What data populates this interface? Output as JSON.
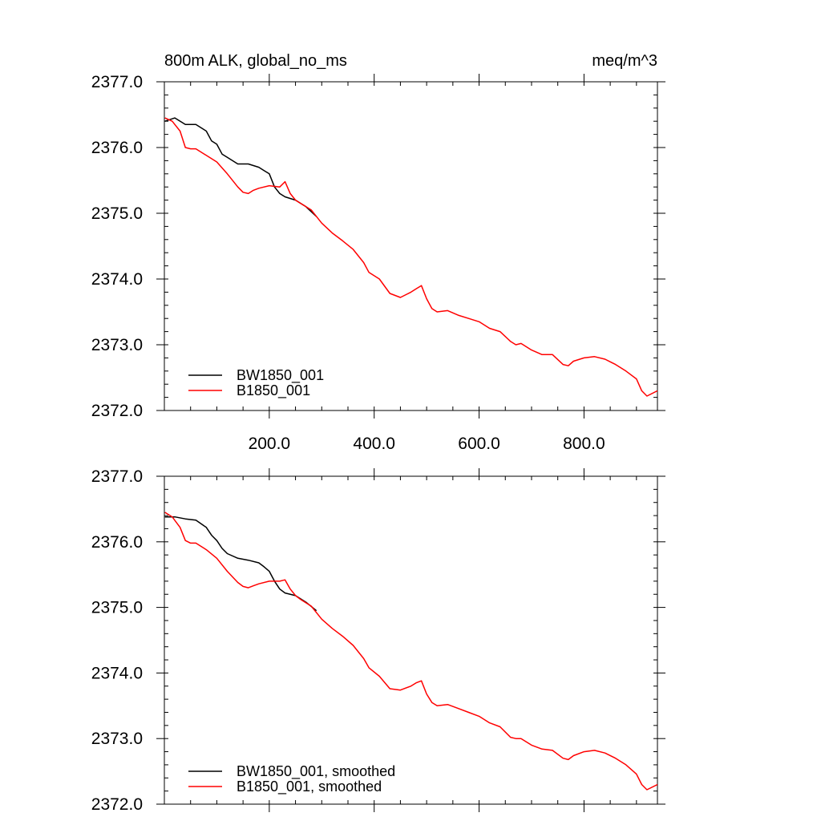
{
  "chart_data": [
    {
      "type": "line",
      "title_left": "800m ALK, global_no_ms",
      "title_right": "meq/m^3",
      "xlim": [
        0,
        940
      ],
      "ylim": [
        2372.0,
        2377.0
      ],
      "x_ticks": [
        200,
        400,
        600,
        800
      ],
      "x_tick_labels": [
        "200.0",
        "400.0",
        "600.0",
        "800.0"
      ],
      "y_ticks": [
        2372,
        2373,
        2374,
        2375,
        2376,
        2377
      ],
      "y_tick_labels": [
        "2372.0",
        "2373.0",
        "2374.0",
        "2375.0",
        "2376.0",
        "2377.0"
      ],
      "legend_position": "bottom-left",
      "series": [
        {
          "name": "BW1850_001",
          "color": "#000000",
          "x": [
            1,
            20,
            40,
            60,
            80,
            90,
            100,
            110,
            120,
            140,
            160,
            180,
            190,
            200,
            210,
            220,
            230,
            250,
            270,
            290
          ],
          "y": [
            2376.4,
            2376.45,
            2376.35,
            2376.35,
            2376.25,
            2376.1,
            2376.05,
            2375.9,
            2375.85,
            2375.75,
            2375.75,
            2375.7,
            2375.65,
            2375.6,
            2375.4,
            2375.3,
            2375.25,
            2375.2,
            2375.1,
            2374.95
          ]
        },
        {
          "name": "B1850_001",
          "color": "#ff0000",
          "x": [
            1,
            15,
            30,
            40,
            50,
            60,
            80,
            100,
            120,
            140,
            150,
            160,
            170,
            180,
            200,
            220,
            230,
            240,
            250,
            260,
            280,
            300,
            320,
            340,
            360,
            380,
            390,
            410,
            430,
            450,
            470,
            480,
            490,
            500,
            510,
            520,
            540,
            560,
            580,
            600,
            620,
            640,
            660,
            670,
            680,
            700,
            720,
            740,
            760,
            770,
            780,
            800,
            820,
            840,
            860,
            880,
            900,
            910,
            920,
            940
          ],
          "y": [
            2376.45,
            2376.4,
            2376.25,
            2376.0,
            2375.98,
            2375.98,
            2375.88,
            2375.78,
            2375.6,
            2375.4,
            2375.32,
            2375.3,
            2375.35,
            2375.38,
            2375.42,
            2375.4,
            2375.48,
            2375.3,
            2375.2,
            2375.15,
            2375.05,
            2374.85,
            2374.7,
            2374.58,
            2374.45,
            2374.25,
            2374.1,
            2374.0,
            2373.78,
            2373.72,
            2373.8,
            2373.85,
            2373.9,
            2373.7,
            2373.55,
            2373.5,
            2373.52,
            2373.45,
            2373.4,
            2373.35,
            2373.25,
            2373.2,
            2373.05,
            2373.0,
            2373.02,
            2372.92,
            2372.85,
            2372.85,
            2372.7,
            2372.68,
            2372.75,
            2372.8,
            2372.82,
            2372.78,
            2372.7,
            2372.6,
            2372.48,
            2372.3,
            2372.22,
            2372.3
          ]
        }
      ]
    },
    {
      "type": "line",
      "xlim": [
        0,
        940
      ],
      "ylim": [
        2372.0,
        2377.0
      ],
      "y_ticks": [
        2372,
        2373,
        2374,
        2375,
        2376,
        2377
      ],
      "y_tick_labels": [
        "2372.0",
        "2373.0",
        "2374.0",
        "2375.0",
        "2376.0",
        "2377.0"
      ],
      "legend_position": "bottom-left",
      "series": [
        {
          "name": "BW1850_001, smoothed",
          "color": "#000000",
          "x": [
            1,
            20,
            40,
            60,
            80,
            90,
            100,
            110,
            120,
            140,
            160,
            180,
            190,
            200,
            210,
            220,
            230,
            250,
            270,
            290
          ],
          "y": [
            2376.38,
            2376.38,
            2376.35,
            2376.33,
            2376.22,
            2376.1,
            2376.02,
            2375.9,
            2375.82,
            2375.75,
            2375.72,
            2375.68,
            2375.62,
            2375.55,
            2375.4,
            2375.28,
            2375.22,
            2375.18,
            2375.08,
            2374.95
          ]
        },
        {
          "name": "B1850_001, smoothed",
          "color": "#ff0000",
          "x": [
            1,
            15,
            30,
            40,
            50,
            60,
            80,
            100,
            120,
            140,
            150,
            160,
            170,
            180,
            200,
            220,
            230,
            240,
            250,
            260,
            280,
            300,
            320,
            340,
            360,
            380,
            390,
            410,
            430,
            450,
            470,
            480,
            490,
            500,
            510,
            520,
            540,
            560,
            580,
            600,
            620,
            640,
            660,
            670,
            680,
            700,
            720,
            740,
            760,
            770,
            780,
            800,
            820,
            840,
            860,
            880,
            900,
            910,
            920,
            940
          ],
          "y": [
            2376.45,
            2376.38,
            2376.22,
            2376.02,
            2375.98,
            2375.98,
            2375.88,
            2375.75,
            2375.55,
            2375.38,
            2375.32,
            2375.3,
            2375.33,
            2375.36,
            2375.4,
            2375.4,
            2375.42,
            2375.28,
            2375.18,
            2375.12,
            2375.02,
            2374.82,
            2374.68,
            2374.56,
            2374.42,
            2374.22,
            2374.08,
            2373.95,
            2373.76,
            2373.74,
            2373.8,
            2373.85,
            2373.88,
            2373.68,
            2373.55,
            2373.5,
            2373.52,
            2373.46,
            2373.4,
            2373.34,
            2373.24,
            2373.18,
            2373.02,
            2373.0,
            2373.0,
            2372.9,
            2372.84,
            2372.82,
            2372.7,
            2372.68,
            2372.74,
            2372.8,
            2372.82,
            2372.78,
            2372.7,
            2372.6,
            2372.46,
            2372.3,
            2372.22,
            2372.3
          ]
        }
      ]
    }
  ]
}
